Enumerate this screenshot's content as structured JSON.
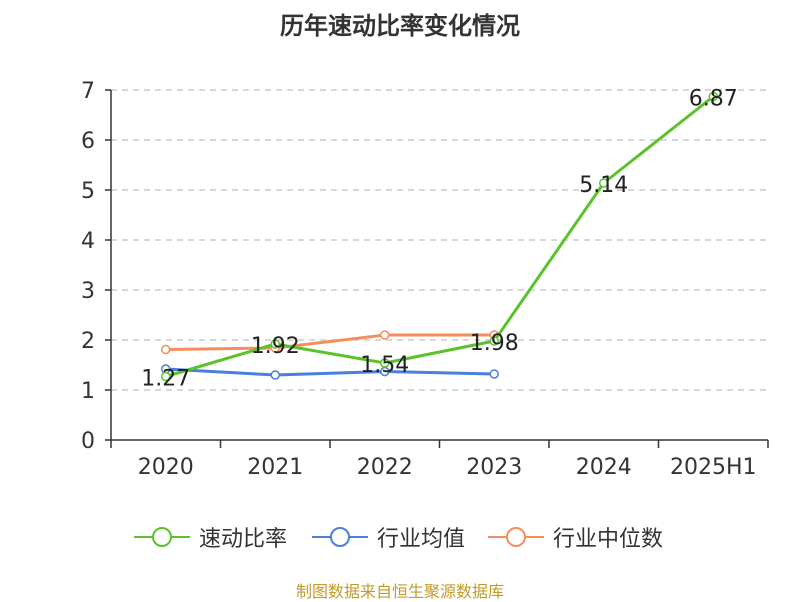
{
  "chart_data": {
    "type": "line",
    "title": "历年速动比率变化情况",
    "categories": [
      "2020",
      "2021",
      "2022",
      "2023",
      "2024",
      "2025H1"
    ],
    "y_ticks": [
      "0",
      "1",
      "2",
      "3",
      "4",
      "5",
      "6",
      "7"
    ],
    "ylim": [
      0,
      7
    ],
    "grid": true,
    "legend_position": "bottom",
    "series": [
      {
        "name": "速动比率",
        "color": "#5cc22c",
        "values": [
          1.27,
          1.92,
          1.54,
          1.98,
          5.14,
          6.87
        ],
        "labels": [
          "1.27",
          "1.92",
          "1.54",
          "1.98",
          "5.14",
          "6.87"
        ]
      },
      {
        "name": "行业均值",
        "color": "#4a7fdc",
        "values": [
          1.42,
          1.3,
          1.37,
          1.32,
          null,
          null
        ],
        "labels": []
      },
      {
        "name": "行业中位数",
        "color": "#f68e5b",
        "values": [
          1.81,
          1.84,
          2.1,
          2.1,
          null,
          null
        ],
        "labels": []
      }
    ]
  },
  "footer": {
    "source": "制图数据来自恒生聚源数据库"
  }
}
